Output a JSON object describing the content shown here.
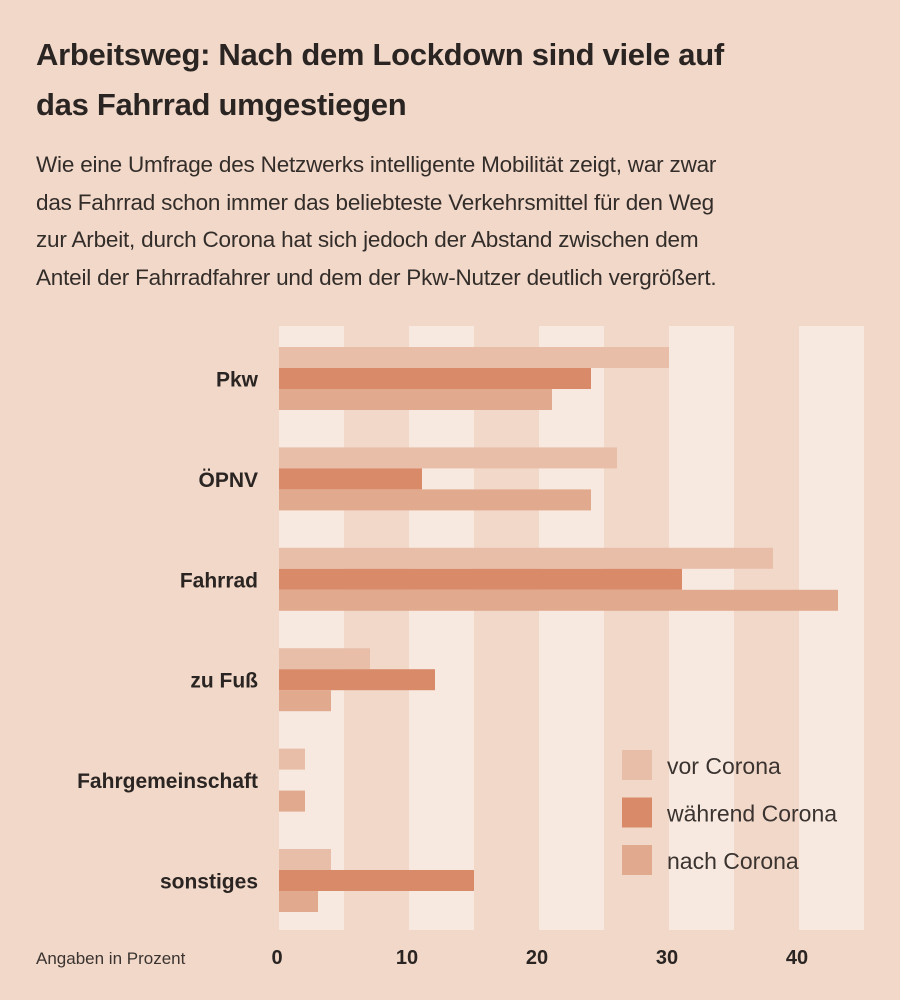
{
  "header": {
    "title_line1": "Arbeitsweg: Nach dem Lockdown sind viele auf",
    "title_line2": "das Fahrrad umgestiegen",
    "subtitle_lines": [
      "Wie eine Umfrage des Netzwerks intelligente Mobilität zeigt, war zwar",
      "das Fahrrad schon immer das beliebteste Verkehrsmittel für den Weg",
      "zur Arbeit, durch Corona hat sich jedoch der Abstand zwischen dem",
      "Anteil der Fahrradfahrer und dem der Pkw-Nutzer deutlich vergrößert."
    ]
  },
  "colors": {
    "background": "#F2D8C9",
    "stripe": "#F7E9DF",
    "vor": "#E8BEA9",
    "waehrend": "#D98A69",
    "nach": "#E1A98E"
  },
  "chart_data": {
    "type": "bar",
    "orientation": "horizontal",
    "title": "Arbeitsweg: Nach dem Lockdown sind viele auf das Fahrrad umgestiegen",
    "note": "Angaben in Prozent",
    "xlabel": "",
    "ylabel": "",
    "xlim": [
      0,
      45
    ],
    "xticks": [
      0,
      10,
      20,
      30,
      40
    ],
    "xtick_labels": [
      "0",
      "10",
      "20",
      "30",
      "40"
    ],
    "grid": "alternating vertical bands every 5",
    "legend_position": "bottom-right",
    "categories": [
      "Pkw",
      "ÖPNV",
      "Fahrrad",
      "zu Fuß",
      "Fahrgemeinschaft",
      "sonstiges"
    ],
    "series": [
      {
        "name": "vor Corona",
        "color": "#E8BEA9",
        "values": [
          30,
          26,
          38,
          7,
          2,
          4
        ]
      },
      {
        "name": "während Corona",
        "color": "#D98A69",
        "values": [
          24,
          11,
          31,
          12,
          0,
          15
        ]
      },
      {
        "name": "nach Corona",
        "color": "#E1A98E",
        "values": [
          21,
          24,
          43,
          4,
          2,
          3
        ]
      }
    ]
  }
}
